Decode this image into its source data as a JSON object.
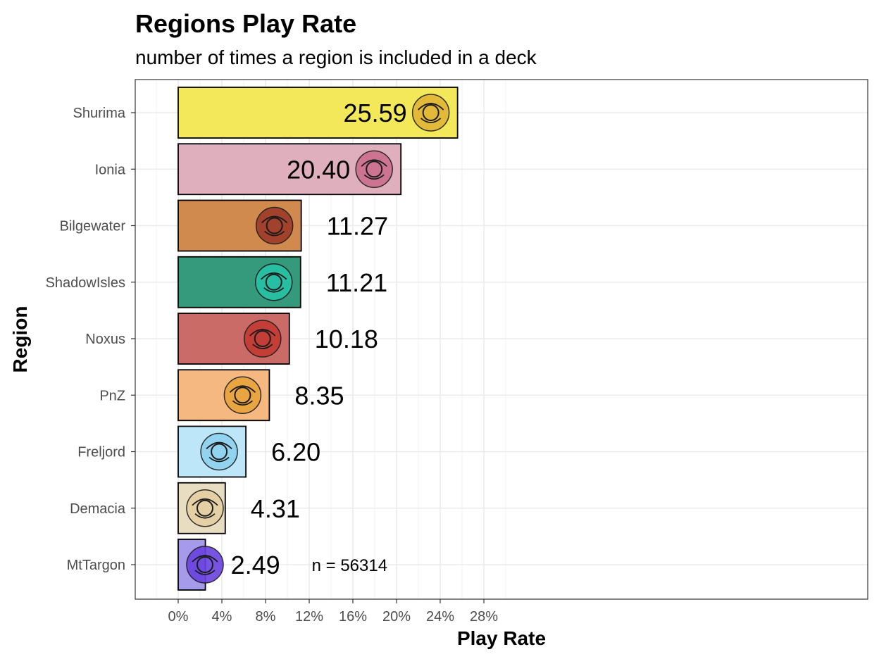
{
  "chart_data": {
    "type": "bar",
    "orientation": "horizontal",
    "title": "Regions Play Rate",
    "subtitle": "number of times a region is included in a deck",
    "xlabel": "Play Rate",
    "ylabel": "Region",
    "xlim": [
      0,
      30
    ],
    "x_ticks": [
      "0%",
      "4%",
      "8%",
      "12%",
      "16%",
      "20%",
      "24%",
      "28%"
    ],
    "x_tick_values": [
      0,
      4,
      8,
      12,
      16,
      20,
      24,
      28
    ],
    "grid": true,
    "legend": "none",
    "annotation": "n = 56314",
    "annotation_position": {
      "x": 15.7,
      "y_category": "MtTargon"
    },
    "bars": [
      {
        "category": "Shurima",
        "value": 25.59,
        "label": "25.59",
        "color": "#F3E85A",
        "icon": "shurima-sun-emblem-icon",
        "icon_color": "#E2B437"
      },
      {
        "category": "Ionia",
        "value": 20.4,
        "label": "20.40",
        "color": "#DFAFBE",
        "icon": "ionia-spirit-swirl-icon",
        "icon_color": "#CC6E8E"
      },
      {
        "category": "Bilgewater",
        "value": 11.27,
        "label": "11.27",
        "color": "#D18A4E",
        "icon": "bilgewater-serpent-icon",
        "icon_color": "#9E3B2A"
      },
      {
        "category": "ShadowIsles",
        "value": 11.21,
        "label": "11.21",
        "color": "#359A7B",
        "icon": "shadow-isles-flame-eye-icon",
        "icon_color": "#27C2A6"
      },
      {
        "category": "Noxus",
        "value": 10.18,
        "label": "10.18",
        "color": "#CB6B68",
        "icon": "noxus-helm-icon",
        "icon_color": "#C23A32"
      },
      {
        "category": "PnZ",
        "value": 8.35,
        "label": "8.35",
        "color": "#F5B880",
        "icon": "piltover-cog-icon",
        "icon_color": "#E8A33C"
      },
      {
        "category": "Freljord",
        "value": 6.2,
        "label": "6.20",
        "color": "#BDE7F8",
        "icon": "freljord-frost-icon",
        "icon_color": "#8ED2F0"
      },
      {
        "category": "Demacia",
        "value": 4.31,
        "label": "4.31",
        "color": "#E8DDC0",
        "icon": "demacia-wings-icon",
        "icon_color": "#E4CFA2"
      },
      {
        "category": "MtTargon",
        "value": 2.49,
        "label": "2.49",
        "color": "#A69BEB",
        "icon": "targon-crescent-icon",
        "icon_color": "#6A42E0"
      }
    ]
  }
}
